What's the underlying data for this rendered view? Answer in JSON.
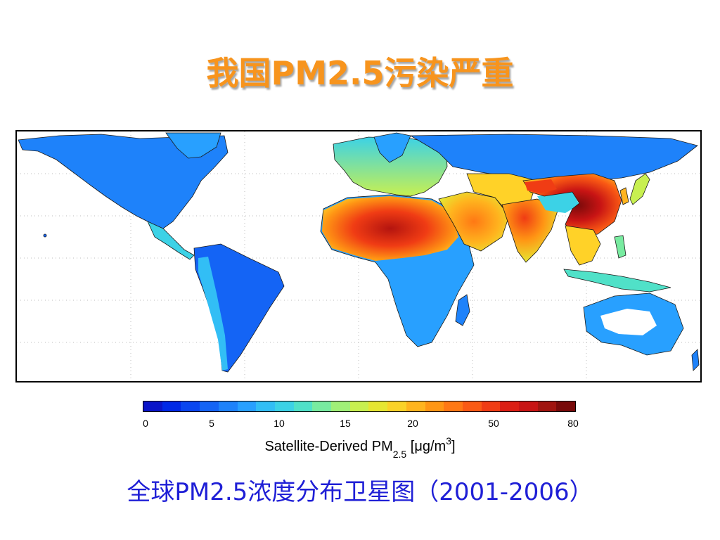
{
  "title": "我国PM2.5污染严重",
  "map": {
    "graticule": true,
    "description_colors": {
      "ocean": "#ffffff",
      "border": "#000000"
    }
  },
  "colorbar": {
    "tick_labels": [
      "0",
      "5",
      "10",
      "15",
      "20",
      "50",
      "80"
    ],
    "tick_values": [
      0,
      5,
      10,
      15,
      20,
      50,
      80
    ],
    "colors": [
      "#0a14c8",
      "#0028e6",
      "#0a46f0",
      "#1464f5",
      "#1e82fa",
      "#28a0ff",
      "#32bef5",
      "#3cd2e6",
      "#50e1c8",
      "#78eba0",
      "#a0f078",
      "#c8f050",
      "#e6e632",
      "#fad228",
      "#ffb41e",
      "#ff9614",
      "#ff7814",
      "#fa5a14",
      "#f03c14",
      "#dc1e14",
      "#c81414",
      "#a0140f",
      "#780a0a"
    ],
    "label_main": "Satellite-Derived PM",
    "label_sub": "2.5",
    "label_unit_prefix": "[μg/m",
    "label_unit_sup": "3",
    "label_unit_suffix": "]"
  },
  "caption": "全球PM2.5浓度分布卫星图（2001-2006）"
}
